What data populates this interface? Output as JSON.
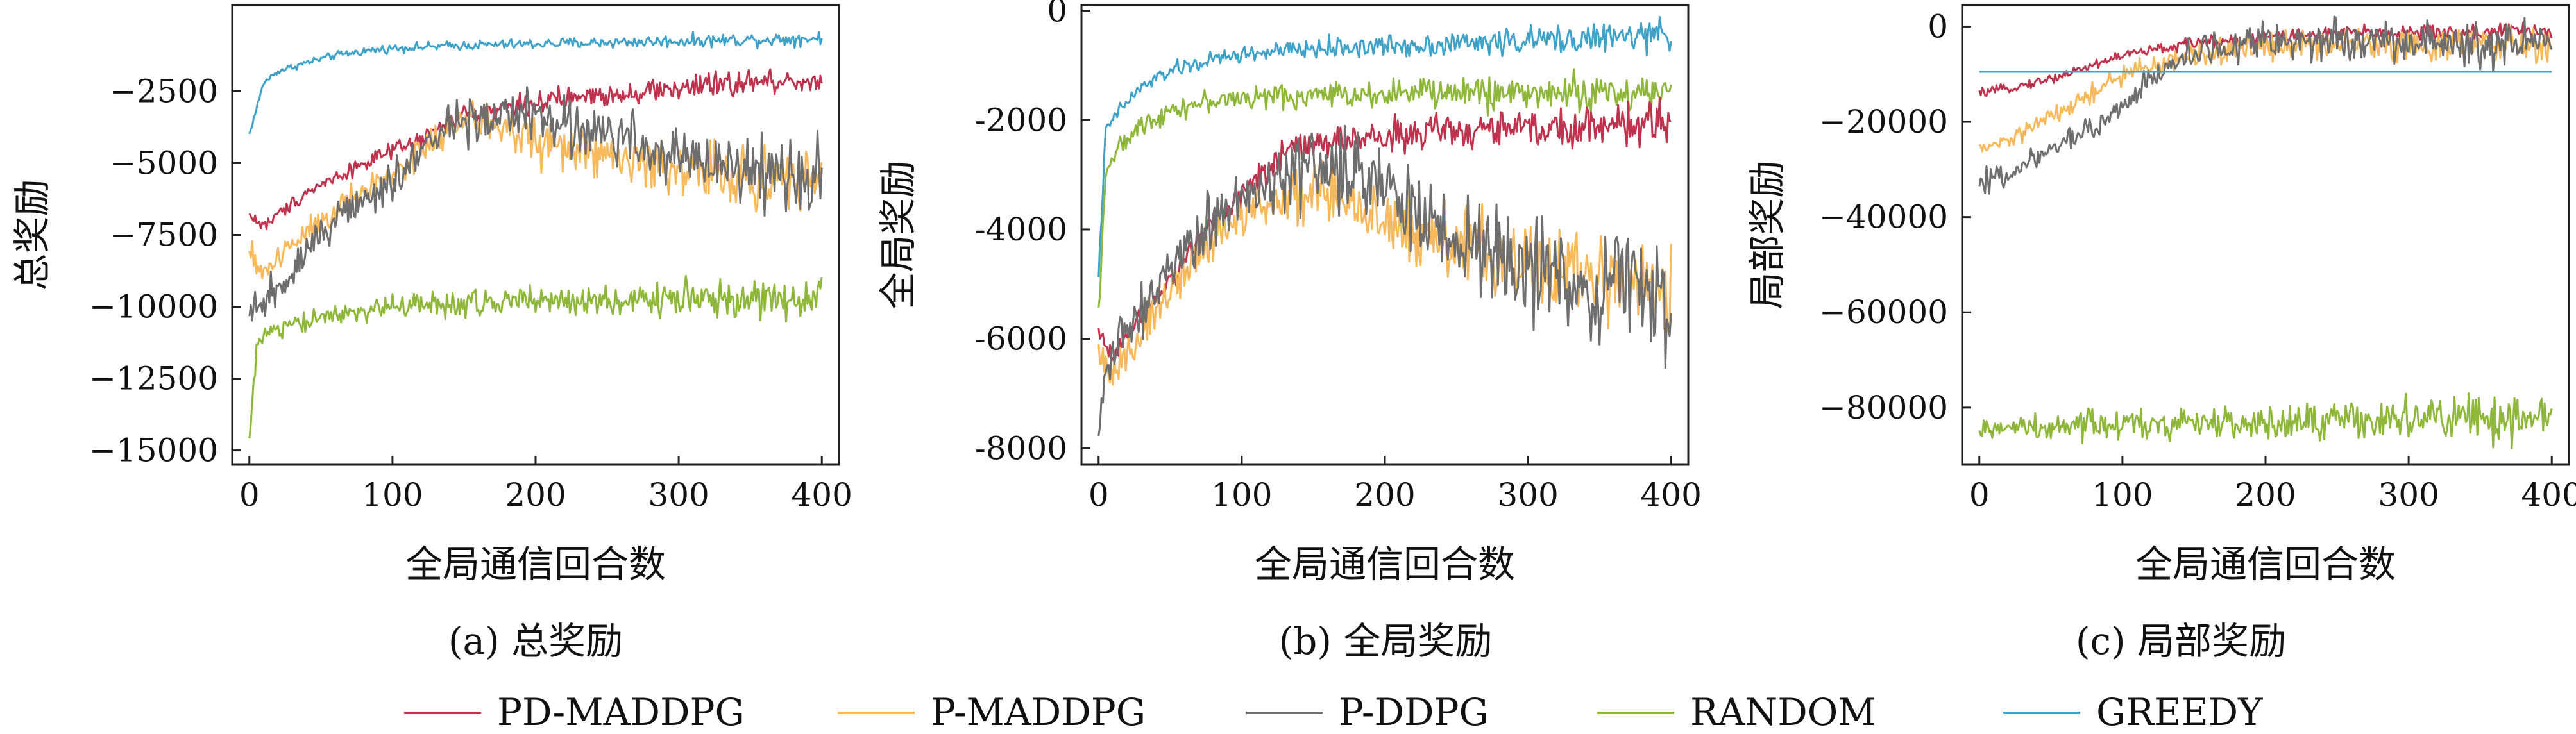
{
  "series_styles": [
    {
      "name": "PD-MADDPG",
      "color": "#c0334f"
    },
    {
      "name": "P-MADDPG",
      "color": "#f7b95a"
    },
    {
      "name": "P-DDPG",
      "color": "#6e6e6e"
    },
    {
      "name": "RANDOM",
      "color": "#8fb83a"
    },
    {
      "name": "GREEDY",
      "color": "#3fa3c9"
    }
  ],
  "chart_data": [
    {
      "type": "line",
      "caption": "(a) 总奖励",
      "xlabel": "全局通信回合数",
      "ylabel": "总奖励",
      "xlim": [
        -12,
        412
      ],
      "ylim": [
        -15500,
        500
      ],
      "xticks": [
        0,
        100,
        200,
        300,
        400
      ],
      "yticks": [
        -2500,
        -5000,
        -7500,
        -10000,
        -12500,
        -15000
      ],
      "ytick_labels": [
        "−2500",
        "−5000",
        "−7500",
        "−10000",
        "−12500",
        "−15000"
      ],
      "grid": false,
      "series": [
        {
          "name": "GREEDY",
          "x": [
            0,
            10,
            20,
            40,
            60,
            80,
            100,
            150,
            200,
            250,
            300,
            350,
            400
          ],
          "y": [
            -4000,
            -2200,
            -1800,
            -1500,
            -1250,
            -1100,
            -1000,
            -900,
            -850,
            -800,
            -750,
            -700,
            -650
          ],
          "noise": 90
        },
        {
          "name": "PD-MADDPG",
          "x": [
            0,
            10,
            20,
            40,
            60,
            80,
            100,
            120,
            150,
            200,
            250,
            300,
            350,
            400
          ],
          "y": [
            -6800,
            -7200,
            -6800,
            -6000,
            -5500,
            -5000,
            -4600,
            -4200,
            -3300,
            -2900,
            -2600,
            -2400,
            -2200,
            -2100
          ],
          "noise": 180
        },
        {
          "name": "P-MADDPG",
          "x": [
            0,
            10,
            20,
            40,
            60,
            80,
            100,
            120,
            140,
            160,
            200,
            250,
            300,
            350,
            400
          ],
          "y": [
            -8200,
            -8800,
            -8300,
            -7300,
            -6600,
            -6000,
            -5400,
            -4600,
            -3800,
            -3500,
            -4200,
            -4800,
            -5200,
            -5500,
            -5600
          ],
          "noise": 400
        },
        {
          "name": "P-DDPG",
          "x": [
            0,
            10,
            20,
            40,
            60,
            80,
            100,
            120,
            140,
            160,
            180,
            200,
            250,
            300,
            350,
            400
          ],
          "y": [
            -10500,
            -9800,
            -9300,
            -8000,
            -7000,
            -6300,
            -5600,
            -4600,
            -3800,
            -3400,
            -3300,
            -3400,
            -4000,
            -4700,
            -5300,
            -5600
          ],
          "noise": 450
        },
        {
          "name": "RANDOM",
          "x": [
            0,
            5,
            10,
            20,
            40,
            60,
            100,
            150,
            200,
            250,
            300,
            350,
            400
          ],
          "y": [
            -14700,
            -11500,
            -11000,
            -10800,
            -10500,
            -10300,
            -10000,
            -9900,
            -9800,
            -9800,
            -9700,
            -9700,
            -9800
          ],
          "noise": 260
        }
      ]
    },
    {
      "type": "line",
      "caption": "(b) 全局奖励",
      "xlabel": "全局通信回合数",
      "ylabel": "全局奖励",
      "xlim": [
        -12,
        412
      ],
      "ylim": [
        -8300,
        100
      ],
      "xticks": [
        0,
        100,
        200,
        300,
        400
      ],
      "yticks": [
        0,
        -2000,
        -4000,
        -6000,
        -8000
      ],
      "ytick_labels": [
        "0",
        "-2000",
        "-4000",
        "-6000",
        "-8000"
      ],
      "grid": false,
      "series": [
        {
          "name": "GREEDY",
          "x": [
            0,
            5,
            15,
            30,
            50,
            80,
            100,
            150,
            200,
            250,
            300,
            350,
            400
          ],
          "y": [
            -4800,
            -2200,
            -1800,
            -1400,
            -1100,
            -900,
            -800,
            -700,
            -650,
            -600,
            -550,
            -500,
            -450
          ],
          "noise": 100
        },
        {
          "name": "RANDOM",
          "x": [
            0,
            5,
            15,
            30,
            50,
            80,
            100,
            150,
            200,
            250,
            300,
            350,
            400
          ],
          "y": [
            -5500,
            -2900,
            -2500,
            -2100,
            -1800,
            -1650,
            -1600,
            -1550,
            -1500,
            -1500,
            -1500,
            -1500,
            -1500
          ],
          "noise": 130
        },
        {
          "name": "PD-MADDPG",
          "x": [
            0,
            10,
            20,
            40,
            60,
            80,
            100,
            120,
            140,
            160,
            200,
            250,
            300,
            350,
            400
          ],
          "y": [
            -5900,
            -6300,
            -5900,
            -5200,
            -4600,
            -3800,
            -3300,
            -2800,
            -2500,
            -2400,
            -2300,
            -2200,
            -2150,
            -2100,
            -2100
          ],
          "noise": 150
        },
        {
          "name": "P-MADDPG",
          "x": [
            0,
            10,
            20,
            40,
            60,
            80,
            100,
            120,
            140,
            160,
            200,
            250,
            300,
            350,
            400
          ],
          "y": [
            -6300,
            -6700,
            -6200,
            -5500,
            -4800,
            -4200,
            -3800,
            -3500,
            -3300,
            -3400,
            -3900,
            -4300,
            -4600,
            -4900,
            -5100
          ],
          "noise": 300
        },
        {
          "name": "P-DDPG",
          "x": [
            0,
            5,
            10,
            20,
            40,
            60,
            80,
            100,
            120,
            140,
            160,
            180,
            200,
            250,
            300,
            350,
            400
          ],
          "y": [
            -7600,
            -6700,
            -6300,
            -5900,
            -5100,
            -4500,
            -3900,
            -3500,
            -3100,
            -2900,
            -2850,
            -3000,
            -3300,
            -4100,
            -4700,
            -5100,
            -5300
          ],
          "noise": 380
        }
      ]
    },
    {
      "type": "line",
      "caption": "(c) 局部奖励",
      "xlabel": "全局通信回合数",
      "ylabel": "局部奖励",
      "xlim": [
        -12,
        412
      ],
      "ylim": [
        -92000,
        4500
      ],
      "xticks": [
        0,
        100,
        200,
        300,
        400
      ],
      "yticks": [
        0,
        -20000,
        -40000,
        -60000,
        -80000
      ],
      "ytick_labels": [
        "0",
        "−20000",
        "−40000",
        "−60000",
        "−80000"
      ],
      "grid": false,
      "series": [
        {
          "name": "PD-MADDPG",
          "x": [
            0,
            20,
            50,
            80,
            100,
            150,
            200,
            250,
            300,
            350,
            400
          ],
          "y": [
            -14000,
            -13000,
            -11000,
            -8000,
            -6000,
            -3500,
            -2200,
            -1500,
            -1200,
            -1100,
            -1000
          ],
          "noise": 700
        },
        {
          "name": "P-MADDPG",
          "x": [
            0,
            20,
            50,
            80,
            100,
            150,
            200,
            250,
            300,
            350,
            400
          ],
          "y": [
            -26000,
            -24000,
            -19000,
            -14000,
            -10000,
            -6000,
            -4000,
            -3500,
            -3600,
            -4000,
            -4200
          ],
          "noise": 1400
        },
        {
          "name": "P-DDPG",
          "x": [
            0,
            20,
            50,
            80,
            100,
            120,
            150,
            200,
            250,
            300,
            350,
            400
          ],
          "y": [
            -33000,
            -31000,
            -26000,
            -21000,
            -16000,
            -11000,
            -5000,
            -3000,
            -2500,
            -3000,
            -3500,
            -4000
          ],
          "noise": 1900
        },
        {
          "name": "GREEDY",
          "x": [
            0,
            400
          ],
          "y": [
            -9500,
            -9500
          ],
          "noise": 0
        },
        {
          "name": "RANDOM",
          "x": [
            0,
            100,
            200,
            300,
            400
          ],
          "y": [
            -84500,
            -83500,
            -83000,
            -82500,
            -82500
          ],
          "noise": 1900
        }
      ]
    }
  ],
  "legend": {
    "entries": [
      "PD-MADDPG",
      "P-MADDPG",
      "P-DDPG",
      "RANDOM",
      "GREEDY"
    ],
    "placement": "bottom"
  }
}
